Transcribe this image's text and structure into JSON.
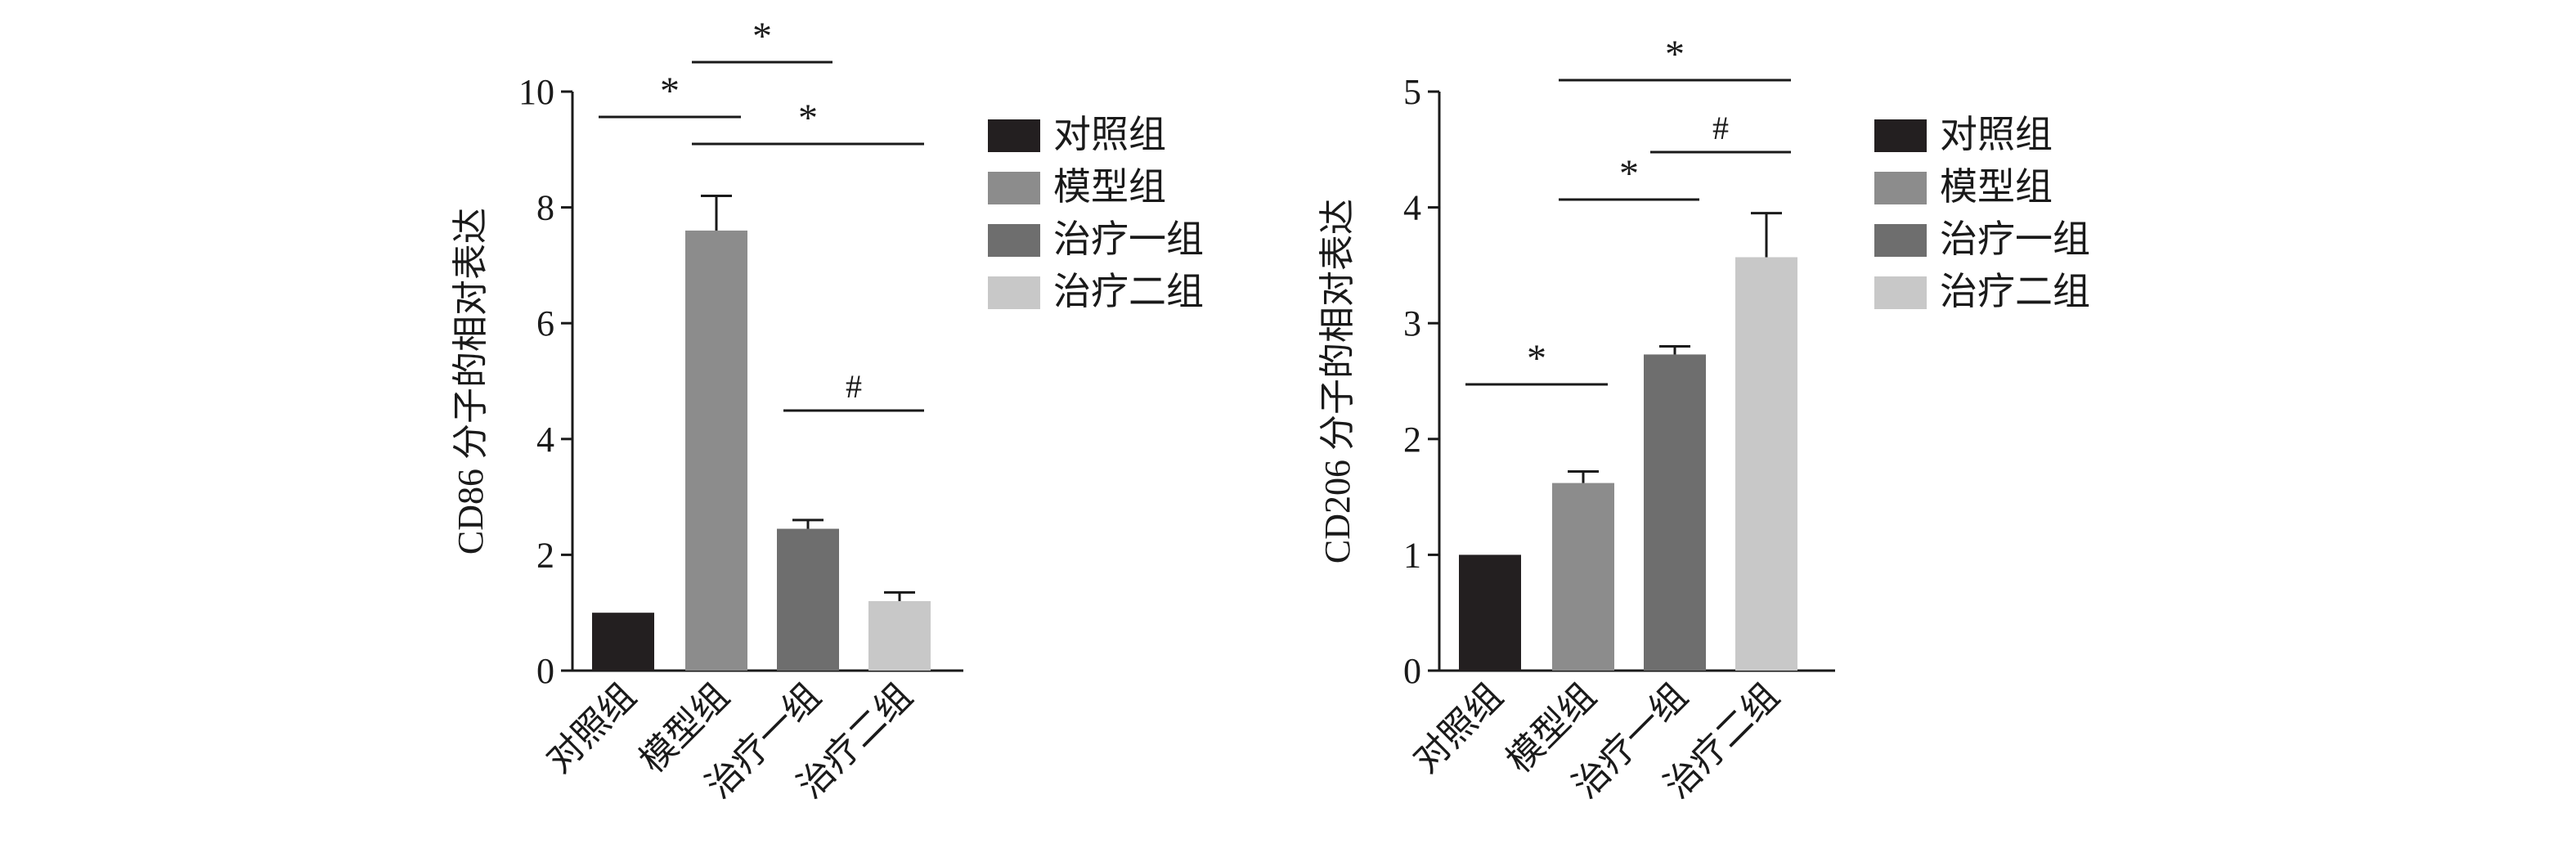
{
  "chart_data": [
    {
      "type": "bar",
      "ylabel": "CD86 分子的相对表达",
      "ylim": [
        0,
        10
      ],
      "yticks": [
        0,
        2,
        4,
        6,
        8,
        10
      ],
      "categories": [
        "对照组",
        "模型组",
        "治疗一组",
        "治疗二组"
      ],
      "values": [
        1.0,
        7.6,
        2.45,
        1.2
      ],
      "errors": [
        0,
        0.6,
        0.15,
        0.15
      ],
      "colors": [
        "#231f20",
        "#8c8c8c",
        "#6e6e6e",
        "#c8c8c8"
      ],
      "legend": [
        "对照组",
        "模型组",
        "治疗一组",
        "治疗二组"
      ],
      "legend_position": "right",
      "significance": [
        {
          "from": 0,
          "to": 1,
          "label": "*",
          "level": 1
        },
        {
          "from": 1,
          "to": 2,
          "label": "*",
          "level": 2
        },
        {
          "from": 1,
          "to": 3,
          "label": "*",
          "level": 0
        },
        {
          "from": 2,
          "to": 3,
          "label": "#",
          "level": 0
        }
      ]
    },
    {
      "type": "bar",
      "ylabel": "CD206 分子的相对表达",
      "ylim": [
        0,
        5
      ],
      "yticks": [
        0,
        1,
        2,
        3,
        4,
        5
      ],
      "categories": [
        "对照组",
        "模型组",
        "治疗一组",
        "治疗二组"
      ],
      "values": [
        1.0,
        1.62,
        2.73,
        3.57
      ],
      "errors": [
        0,
        0.1,
        0.07,
        0.38
      ],
      "colors": [
        "#231f20",
        "#8c8c8c",
        "#6e6e6e",
        "#c8c8c8"
      ],
      "legend": [
        "对照组",
        "模型组",
        "治疗一组",
        "治疗二组"
      ],
      "legend_position": "right",
      "significance": [
        {
          "from": 0,
          "to": 1,
          "label": "*",
          "level": 0
        },
        {
          "from": 1,
          "to": 2,
          "label": "*",
          "level": 0
        },
        {
          "from": 2,
          "to": 3,
          "label": "#",
          "level": 0
        },
        {
          "from": 1,
          "to": 3,
          "label": "*",
          "level": 1
        }
      ]
    }
  ]
}
